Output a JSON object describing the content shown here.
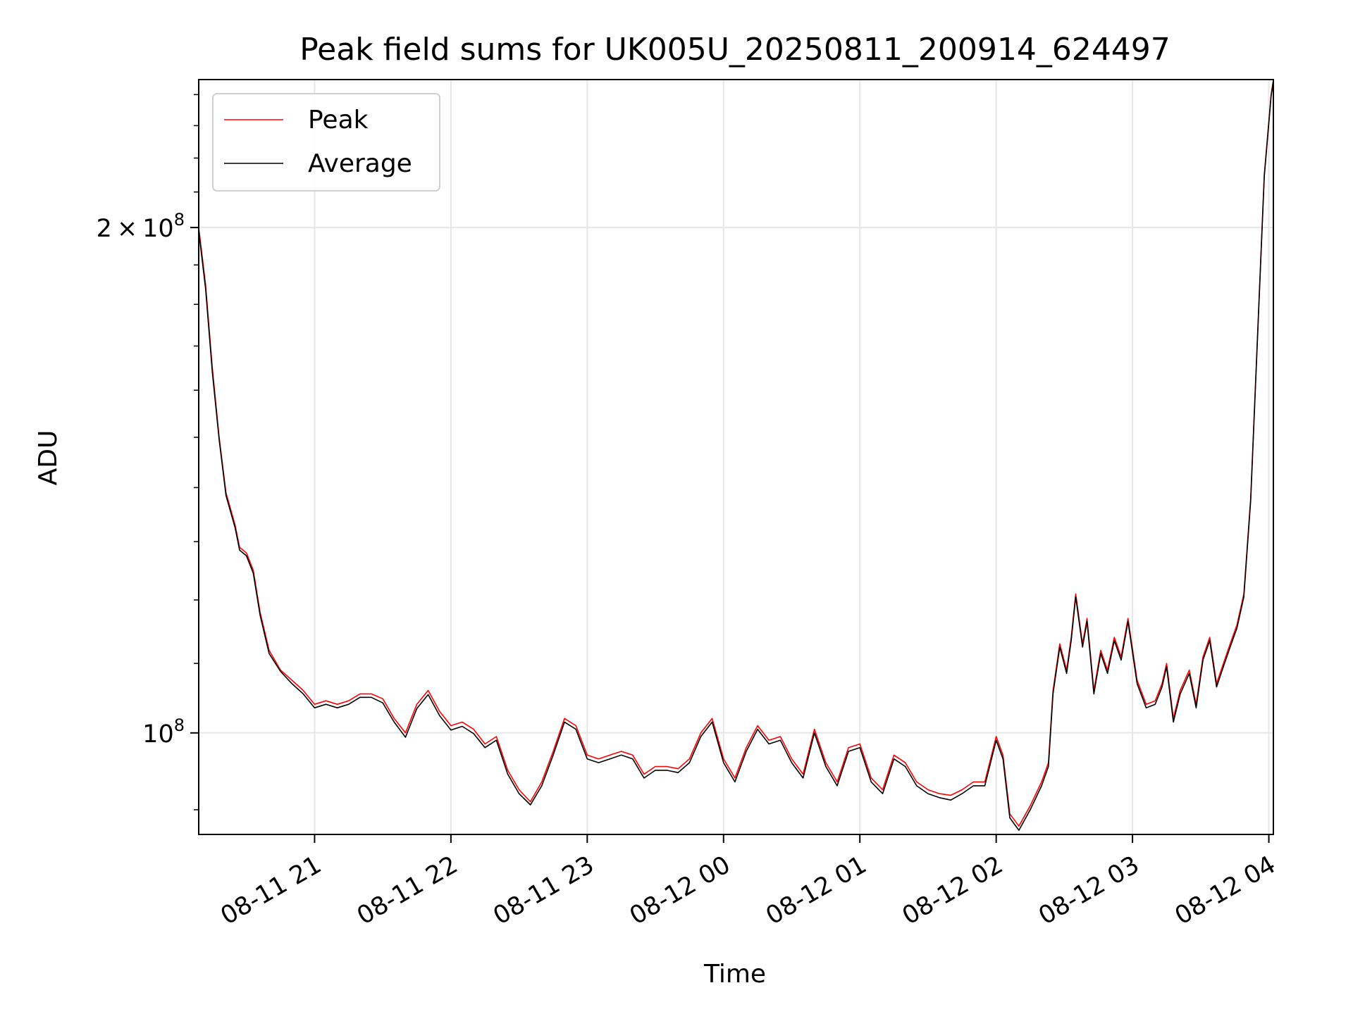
{
  "chart_data": {
    "type": "line",
    "title": "Peak field sums for UK005U_20250811_200914_624497",
    "xlabel": "Time",
    "ylabel": "ADU",
    "y_scale": "log",
    "y_unit_exponent": 8,
    "xlim": [
      "2025-08-11 20:09",
      "2025-08-12 04:02"
    ],
    "ylim": [
      87000000,
      245000000
    ],
    "x_ticks": [
      "08-11 21",
      "08-11 22",
      "08-11 23",
      "08-12 00",
      "08-12 01",
      "08-12 02",
      "08-12 03",
      "08-12 04"
    ],
    "y_ticks": [
      {
        "label": "2×10^8",
        "base": "2",
        "exponent": "8",
        "value": 200000000
      },
      {
        "label": "10^8",
        "base": "",
        "exponent": "8",
        "value": 100000000
      }
    ],
    "grid": true,
    "legend": {
      "position": "upper-left",
      "entries": [
        "Peak",
        "Average"
      ]
    },
    "series": [
      {
        "name": "Peak",
        "color": "#ff0000",
        "x": [
          "2025-08-11 20:09",
          "2025-08-11 20:12",
          "2025-08-11 20:15",
          "2025-08-11 20:18",
          "2025-08-11 20:21",
          "2025-08-11 20:25",
          "2025-08-11 20:27",
          "2025-08-11 20:30",
          "2025-08-11 20:33",
          "2025-08-11 20:36",
          "2025-08-11 20:40",
          "2025-08-11 20:45",
          "2025-08-11 20:50",
          "2025-08-11 20:55",
          "2025-08-11 21:00",
          "2025-08-11 21:05",
          "2025-08-11 21:10",
          "2025-08-11 21:15",
          "2025-08-11 21:20",
          "2025-08-11 21:25",
          "2025-08-11 21:30",
          "2025-08-11 21:35",
          "2025-08-11 21:40",
          "2025-08-11 21:45",
          "2025-08-11 21:50",
          "2025-08-11 21:55",
          "2025-08-11 22:00",
          "2025-08-11 22:05",
          "2025-08-11 22:10",
          "2025-08-11 22:15",
          "2025-08-11 22:20",
          "2025-08-11 22:25",
          "2025-08-11 22:30",
          "2025-08-11 22:35",
          "2025-08-11 22:40",
          "2025-08-11 22:45",
          "2025-08-11 22:50",
          "2025-08-11 22:55",
          "2025-08-11 23:00",
          "2025-08-11 23:05",
          "2025-08-11 23:10",
          "2025-08-11 23:15",
          "2025-08-11 23:20",
          "2025-08-11 23:25",
          "2025-08-11 23:30",
          "2025-08-11 23:35",
          "2025-08-11 23:40",
          "2025-08-11 23:45",
          "2025-08-11 23:50",
          "2025-08-11 23:55",
          "2025-08-12 00:00",
          "2025-08-12 00:05",
          "2025-08-12 00:10",
          "2025-08-12 00:15",
          "2025-08-12 00:20",
          "2025-08-12 00:25",
          "2025-08-12 00:30",
          "2025-08-12 00:35",
          "2025-08-12 00:40",
          "2025-08-12 00:45",
          "2025-08-12 00:50",
          "2025-08-12 00:55",
          "2025-08-12 01:00",
          "2025-08-12 01:05",
          "2025-08-12 01:10",
          "2025-08-12 01:15",
          "2025-08-12 01:20",
          "2025-08-12 01:25",
          "2025-08-12 01:30",
          "2025-08-12 01:35",
          "2025-08-12 01:40",
          "2025-08-12 01:45",
          "2025-08-12 01:50",
          "2025-08-12 01:55",
          "2025-08-12 02:00",
          "2025-08-12 02:03",
          "2025-08-12 02:06",
          "2025-08-12 02:10",
          "2025-08-12 02:15",
          "2025-08-12 02:20",
          "2025-08-12 02:23",
          "2025-08-12 02:25",
          "2025-08-12 02:28",
          "2025-08-12 02:31",
          "2025-08-12 02:33",
          "2025-08-12 02:35",
          "2025-08-12 02:38",
          "2025-08-12 02:40",
          "2025-08-12 02:43",
          "2025-08-12 02:46",
          "2025-08-12 02:49",
          "2025-08-12 02:52",
          "2025-08-12 02:55",
          "2025-08-12 02:58",
          "2025-08-12 03:02",
          "2025-08-12 03:06",
          "2025-08-12 03:10",
          "2025-08-12 03:13",
          "2025-08-12 03:15",
          "2025-08-12 03:18",
          "2025-08-12 03:21",
          "2025-08-12 03:25",
          "2025-08-12 03:28",
          "2025-08-12 03:31",
          "2025-08-12 03:34",
          "2025-08-12 03:37",
          "2025-08-12 03:40",
          "2025-08-12 03:43",
          "2025-08-12 03:46",
          "2025-08-12 03:49",
          "2025-08-12 03:52",
          "2025-08-12 03:55",
          "2025-08-12 03:58",
          "2025-08-12 04:01",
          "2025-08-12 04:02"
        ],
        "y": [
          200000000,
          185000000,
          165000000,
          150000000,
          139000000,
          133000000,
          129000000,
          128000000,
          125000000,
          118000000,
          112000000,
          109000000,
          107500000,
          106000000,
          104000000,
          104500000,
          104000000,
          104500000,
          105500000,
          105500000,
          104800000,
          102000000,
          100000000,
          104000000,
          106000000,
          103000000,
          101000000,
          101500000,
          100500000,
          98500000,
          99500000,
          95000000,
          92500000,
          91000000,
          93500000,
          97500000,
          102000000,
          101000000,
          97000000,
          96500000,
          97000000,
          97500000,
          97000000,
          94500000,
          95500000,
          95500000,
          95200000,
          96500000,
          100000000,
          102000000,
          96500000,
          94000000,
          98000000,
          101000000,
          99000000,
          99500000,
          96500000,
          94500000,
          100500000,
          96000000,
          93500000,
          98000000,
          98500000,
          94000000,
          92500000,
          97000000,
          96000000,
          93500000,
          92500000,
          92000000,
          91800000,
          92500000,
          93500000,
          93500000,
          99500000,
          97000000,
          89500000,
          88000000,
          90500000,
          93500000,
          96000000,
          106000000,
          113000000,
          109000000,
          114000000,
          121000000,
          113000000,
          117000000,
          106000000,
          112000000,
          109000000,
          114000000,
          111000000,
          117000000,
          107500000,
          104000000,
          104500000,
          107000000,
          110000000,
          102000000,
          106000000,
          109000000,
          104000000,
          111000000,
          114000000,
          107000000,
          110000000,
          113000000,
          116000000,
          121000000,
          138000000,
          172000000,
          215000000,
          240000000,
          245000000
        ]
      },
      {
        "name": "Average",
        "color": "#000000",
        "x": [
          "2025-08-11 20:09",
          "2025-08-11 20:12",
          "2025-08-11 20:15",
          "2025-08-11 20:18",
          "2025-08-11 20:21",
          "2025-08-11 20:25",
          "2025-08-11 20:27",
          "2025-08-11 20:30",
          "2025-08-11 20:33",
          "2025-08-11 20:36",
          "2025-08-11 20:40",
          "2025-08-11 20:45",
          "2025-08-11 20:50",
          "2025-08-11 20:55",
          "2025-08-11 21:00",
          "2025-08-11 21:05",
          "2025-08-11 21:10",
          "2025-08-11 21:15",
          "2025-08-11 21:20",
          "2025-08-11 21:25",
          "2025-08-11 21:30",
          "2025-08-11 21:35",
          "2025-08-11 21:40",
          "2025-08-11 21:45",
          "2025-08-11 21:50",
          "2025-08-11 21:55",
          "2025-08-11 22:00",
          "2025-08-11 22:05",
          "2025-08-11 22:10",
          "2025-08-11 22:15",
          "2025-08-11 22:20",
          "2025-08-11 22:25",
          "2025-08-11 22:30",
          "2025-08-11 22:35",
          "2025-08-11 22:40",
          "2025-08-11 22:45",
          "2025-08-11 22:50",
          "2025-08-11 22:55",
          "2025-08-11 23:00",
          "2025-08-11 23:05",
          "2025-08-11 23:10",
          "2025-08-11 23:15",
          "2025-08-11 23:20",
          "2025-08-11 23:25",
          "2025-08-11 23:30",
          "2025-08-11 23:35",
          "2025-08-11 23:40",
          "2025-08-11 23:45",
          "2025-08-11 23:50",
          "2025-08-11 23:55",
          "2025-08-12 00:00",
          "2025-08-12 00:05",
          "2025-08-12 00:10",
          "2025-08-12 00:15",
          "2025-08-12 00:20",
          "2025-08-12 00:25",
          "2025-08-12 00:30",
          "2025-08-12 00:35",
          "2025-08-12 00:40",
          "2025-08-12 00:45",
          "2025-08-12 00:50",
          "2025-08-12 00:55",
          "2025-08-12 01:00",
          "2025-08-12 01:05",
          "2025-08-12 01:10",
          "2025-08-12 01:15",
          "2025-08-12 01:20",
          "2025-08-12 01:25",
          "2025-08-12 01:30",
          "2025-08-12 01:35",
          "2025-08-12 01:40",
          "2025-08-12 01:45",
          "2025-08-12 01:50",
          "2025-08-12 01:55",
          "2025-08-12 02:00",
          "2025-08-12 02:03",
          "2025-08-12 02:06",
          "2025-08-12 02:10",
          "2025-08-12 02:15",
          "2025-08-12 02:20",
          "2025-08-12 02:23",
          "2025-08-12 02:25",
          "2025-08-12 02:28",
          "2025-08-12 02:31",
          "2025-08-12 02:33",
          "2025-08-12 02:35",
          "2025-08-12 02:38",
          "2025-08-12 02:40",
          "2025-08-12 02:43",
          "2025-08-12 02:46",
          "2025-08-12 02:49",
          "2025-08-12 02:52",
          "2025-08-12 02:55",
          "2025-08-12 02:58",
          "2025-08-12 03:02",
          "2025-08-12 03:06",
          "2025-08-12 03:10",
          "2025-08-12 03:13",
          "2025-08-12 03:15",
          "2025-08-12 03:18",
          "2025-08-12 03:21",
          "2025-08-12 03:25",
          "2025-08-12 03:28",
          "2025-08-12 03:31",
          "2025-08-12 03:34",
          "2025-08-12 03:37",
          "2025-08-12 03:40",
          "2025-08-12 03:43",
          "2025-08-12 03:46",
          "2025-08-12 03:49",
          "2025-08-12 03:52",
          "2025-08-12 03:55",
          "2025-08-12 03:58",
          "2025-08-12 04:01",
          "2025-08-12 04:02"
        ],
        "y": [
          199000000,
          184000000,
          164000000,
          149500000,
          138500000,
          132500000,
          128500000,
          127500000,
          124500000,
          117500000,
          111500000,
          108800000,
          107000000,
          105500000,
          103500000,
          104000000,
          103500000,
          104000000,
          105000000,
          105000000,
          104200000,
          101500000,
          99400000,
          103400000,
          105400000,
          102400000,
          100400000,
          100900000,
          99900000,
          98000000,
          99000000,
          94500000,
          92000000,
          90600000,
          93000000,
          97000000,
          101500000,
          100500000,
          96500000,
          96000000,
          96500000,
          97000000,
          96500000,
          94000000,
          95000000,
          95000000,
          94700000,
          96000000,
          99500000,
          101500000,
          96000000,
          93500000,
          97500000,
          100500000,
          98500000,
          99000000,
          96000000,
          94000000,
          100000000,
          95500000,
          93000000,
          97500000,
          98000000,
          93500000,
          92000000,
          96500000,
          95500000,
          93000000,
          92000000,
          91500000,
          91200000,
          92000000,
          93000000,
          93000000,
          99000000,
          96500000,
          89000000,
          87500000,
          90000000,
          93000000,
          95500000,
          105500000,
          112500000,
          108500000,
          113500000,
          120500000,
          112500000,
          116500000,
          105500000,
          111500000,
          108500000,
          113500000,
          110500000,
          116500000,
          107000000,
          103500000,
          104000000,
          106500000,
          109500000,
          101500000,
          105500000,
          108500000,
          103500000,
          110500000,
          113500000,
          106500000,
          109500000,
          112500000,
          115500000,
          120500000,
          137500000,
          171500000,
          214500000,
          239500000,
          244500000
        ]
      }
    ]
  }
}
